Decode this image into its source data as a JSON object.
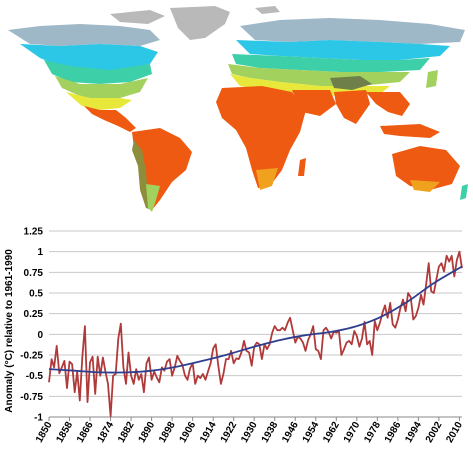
{
  "map": {
    "colors": {
      "ocean": "#ffffff",
      "ice": "#b9b9b9",
      "polar": "#9fb8c8",
      "cold": "#2cc6e6",
      "cool": "#3ccfa8",
      "temperate": "#a3d15e",
      "warm": "#e8e83a",
      "hot": "#f0a21e",
      "tropical": "#ee5a12",
      "arid": "#8d8d3c",
      "alpine": "#6f7f4a"
    }
  },
  "chart_data": {
    "type": "line",
    "xlabel": "",
    "ylabel": "Anomaly (°C) relative to 1961-1990",
    "title": "",
    "xlim": [
      1850,
      2011
    ],
    "ylim": [
      -1,
      1.25
    ],
    "yticks": [
      -1,
      -0.75,
      -0.5,
      -0.25,
      0,
      0.25,
      0.5,
      0.75,
      1,
      1.25
    ],
    "ytick_labels": [
      "-1",
      "-0.75",
      "-0.5",
      "-0.25",
      "0",
      "0.25",
      "0.5",
      "0.75",
      "1",
      "1.25"
    ],
    "xticks": [
      1850,
      1858,
      1866,
      1874,
      1882,
      1890,
      1898,
      1906,
      1914,
      1922,
      1930,
      1938,
      1946,
      1954,
      1962,
      1970,
      1978,
      1986,
      1994,
      2002,
      2010
    ],
    "xtick_labels": [
      "1850",
      "1858",
      "1866",
      "1874",
      "1882",
      "1890",
      "1898",
      "1906",
      "1914",
      "1922",
      "1930",
      "1938",
      "1946",
      "1954",
      "1962",
      "1970",
      "1978",
      "1986",
      "1994",
      "2002",
      "2010"
    ],
    "grid": true,
    "colors": {
      "annual": "#b03a3a",
      "trend": "#2f3f8f",
      "grid": "#c8c8c8"
    },
    "series": [
      {
        "values": [
          [
            1850,
            -0.58
          ],
          [
            1851,
            -0.3
          ],
          [
            1852,
            -0.4
          ],
          [
            1853,
            -0.14
          ],
          [
            1854,
            -0.47
          ],
          [
            1855,
            -0.4
          ],
          [
            1856,
            -0.32
          ],
          [
            1857,
            -0.65
          ],
          [
            1858,
            -0.33
          ],
          [
            1859,
            -0.36
          ],
          [
            1860,
            -0.7
          ],
          [
            1861,
            -0.45
          ],
          [
            1862,
            -0.8
          ],
          [
            1863,
            -0.28
          ],
          [
            1864,
            0.1
          ],
          [
            1865,
            -0.82
          ],
          [
            1866,
            -0.34
          ],
          [
            1867,
            -0.27
          ],
          [
            1868,
            -0.72
          ],
          [
            1869,
            -0.27
          ],
          [
            1870,
            -0.5
          ],
          [
            1871,
            -0.28
          ],
          [
            1872,
            -0.45
          ],
          [
            1873,
            -0.6
          ],
          [
            1874,
            -0.99
          ],
          [
            1875,
            -0.5
          ],
          [
            1876,
            -0.48
          ],
          [
            1877,
            -0.05
          ],
          [
            1878,
            0.13
          ],
          [
            1879,
            -0.4
          ],
          [
            1880,
            -0.6
          ],
          [
            1881,
            -0.22
          ],
          [
            1882,
            -0.5
          ],
          [
            1883,
            -0.6
          ],
          [
            1884,
            -0.42
          ],
          [
            1885,
            -0.55
          ],
          [
            1886,
            -0.48
          ],
          [
            1887,
            -0.7
          ],
          [
            1888,
            -0.35
          ],
          [
            1889,
            -0.28
          ],
          [
            1890,
            -0.55
          ],
          [
            1891,
            -0.45
          ],
          [
            1892,
            -0.52
          ],
          [
            1893,
            -0.58
          ],
          [
            1894,
            -0.4
          ],
          [
            1895,
            -0.44
          ],
          [
            1896,
            -0.33
          ],
          [
            1897,
            -0.3
          ],
          [
            1898,
            -0.5
          ],
          [
            1899,
            -0.4
          ],
          [
            1900,
            -0.26
          ],
          [
            1901,
            -0.32
          ],
          [
            1902,
            -0.37
          ],
          [
            1903,
            -0.5
          ],
          [
            1904,
            -0.55
          ],
          [
            1905,
            -0.41
          ],
          [
            1906,
            -0.35
          ],
          [
            1907,
            -0.6
          ],
          [
            1908,
            -0.5
          ],
          [
            1909,
            -0.53
          ],
          [
            1910,
            -0.48
          ],
          [
            1911,
            -0.55
          ],
          [
            1912,
            -0.45
          ],
          [
            1913,
            -0.35
          ],
          [
            1914,
            -0.17
          ],
          [
            1915,
            -0.12
          ],
          [
            1916,
            -0.38
          ],
          [
            1917,
            -0.6
          ],
          [
            1918,
            -0.48
          ],
          [
            1919,
            -0.3
          ],
          [
            1920,
            -0.3
          ],
          [
            1921,
            -0.2
          ],
          [
            1922,
            -0.35
          ],
          [
            1923,
            -0.29
          ],
          [
            1924,
            -0.3
          ],
          [
            1925,
            -0.22
          ],
          [
            1926,
            -0.08
          ],
          [
            1927,
            -0.2
          ],
          [
            1928,
            -0.22
          ],
          [
            1929,
            -0.38
          ],
          [
            1930,
            -0.15
          ],
          [
            1931,
            -0.1
          ],
          [
            1932,
            -0.12
          ],
          [
            1933,
            -0.3
          ],
          [
            1934,
            -0.12
          ],
          [
            1935,
            -0.18
          ],
          [
            1936,
            -0.12
          ],
          [
            1937,
            0.02
          ],
          [
            1938,
            0.1
          ],
          [
            1939,
            0.05
          ],
          [
            1940,
            0.05
          ],
          [
            1941,
            0.08
          ],
          [
            1942,
            0.05
          ],
          [
            1943,
            0.14
          ],
          [
            1944,
            0.2
          ],
          [
            1945,
            0.05
          ],
          [
            1946,
            -0.1
          ],
          [
            1947,
            -0.03
          ],
          [
            1948,
            -0.05
          ],
          [
            1949,
            -0.1
          ],
          [
            1950,
            -0.2
          ],
          [
            1951,
            -0.07
          ],
          [
            1952,
            0.0
          ],
          [
            1953,
            0.1
          ],
          [
            1954,
            -0.18
          ],
          [
            1955,
            -0.2
          ],
          [
            1956,
            -0.3
          ],
          [
            1957,
            0.05
          ],
          [
            1958,
            0.08
          ],
          [
            1959,
            0.03
          ],
          [
            1960,
            -0.05
          ],
          [
            1961,
            0.03
          ],
          [
            1962,
            0.02
          ],
          [
            1963,
            0.04
          ],
          [
            1964,
            -0.25
          ],
          [
            1965,
            -0.18
          ],
          [
            1966,
            -0.1
          ],
          [
            1967,
            -0.08
          ],
          [
            1968,
            -0.12
          ],
          [
            1969,
            0.04
          ],
          [
            1970,
            -0.02
          ],
          [
            1971,
            -0.15
          ],
          [
            1972,
            -0.05
          ],
          [
            1973,
            0.15
          ],
          [
            1974,
            -0.12
          ],
          [
            1975,
            -0.08
          ],
          [
            1976,
            -0.25
          ],
          [
            1977,
            0.16
          ],
          [
            1978,
            0.05
          ],
          [
            1979,
            0.14
          ],
          [
            1980,
            0.26
          ],
          [
            1981,
            0.35
          ],
          [
            1982,
            0.2
          ],
          [
            1983,
            0.38
          ],
          [
            1984,
            0.12
          ],
          [
            1985,
            0.08
          ],
          [
            1986,
            0.18
          ],
          [
            1987,
            0.32
          ],
          [
            1988,
            0.42
          ],
          [
            1989,
            0.28
          ],
          [
            1990,
            0.5
          ],
          [
            1991,
            0.45
          ],
          [
            1992,
            0.18
          ],
          [
            1993,
            0.22
          ],
          [
            1994,
            0.32
          ],
          [
            1995,
            0.48
          ],
          [
            1996,
            0.36
          ],
          [
            1997,
            0.6
          ],
          [
            1998,
            0.86
          ],
          [
            1999,
            0.52
          ],
          [
            2000,
            0.5
          ],
          [
            2001,
            0.66
          ],
          [
            2002,
            0.82
          ],
          [
            2003,
            0.86
          ],
          [
            2004,
            0.76
          ],
          [
            2005,
            0.95
          ],
          [
            2006,
            0.88
          ],
          [
            2007,
            0.95
          ],
          [
            2008,
            0.7
          ],
          [
            2009,
            0.9
          ],
          [
            2010,
            1.0
          ],
          [
            2011,
            0.8
          ]
        ]
      },
      {
        "values": [
          [
            1850,
            -0.42
          ],
          [
            1860,
            -0.44
          ],
          [
            1870,
            -0.46
          ],
          [
            1880,
            -0.46
          ],
          [
            1890,
            -0.44
          ],
          [
            1900,
            -0.39
          ],
          [
            1910,
            -0.32
          ],
          [
            1920,
            -0.24
          ],
          [
            1930,
            -0.15
          ],
          [
            1940,
            -0.07
          ],
          [
            1950,
            -0.01
          ],
          [
            1960,
            0.03
          ],
          [
            1970,
            0.1
          ],
          [
            1980,
            0.22
          ],
          [
            1990,
            0.4
          ],
          [
            2000,
            0.62
          ],
          [
            2011,
            0.82
          ]
        ]
      }
    ]
  }
}
